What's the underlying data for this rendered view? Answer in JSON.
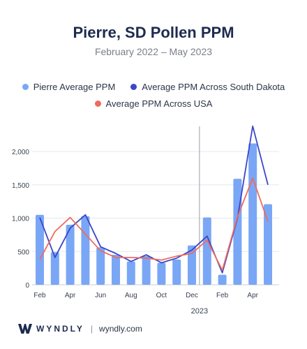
{
  "chart_data": {
    "type": "bar",
    "title": "Pierre, SD Pollen PPM",
    "subtitle": "February 2022 – May 2023",
    "categories": [
      "Feb",
      "Mar",
      "Apr",
      "May",
      "Jun",
      "Jul",
      "Aug",
      "Sep",
      "Oct",
      "Nov",
      "Dec",
      "Jan",
      "Feb",
      "Mar",
      "Apr",
      "May"
    ],
    "x_tick_labels": [
      "Feb",
      "Apr",
      "Jun",
      "Aug",
      "Oct",
      "Dec",
      "Feb",
      "Apr"
    ],
    "year_divider_label": "2023",
    "series": [
      {
        "name": "Pierre Average PPM",
        "kind": "bar",
        "color": "#7aa7f5",
        "values": [
          1050,
          490,
          900,
          1030,
          560,
          450,
          350,
          430,
          330,
          380,
          590,
          1010,
          150,
          1590,
          2120,
          1210
        ]
      },
      {
        "name": "Average PPM Across South Dakota",
        "kind": "line",
        "color": "#3b46c9",
        "values": [
          1010,
          410,
          850,
          1050,
          570,
          470,
          350,
          450,
          330,
          400,
          520,
          730,
          180,
          1000,
          2380,
          1500
        ]
      },
      {
        "name": "Average PPM Across USA",
        "kind": "line",
        "color": "#ee6a5f",
        "values": [
          380,
          800,
          1010,
          760,
          510,
          410,
          410,
          400,
          370,
          430,
          470,
          670,
          220,
          1020,
          1600,
          950
        ]
      }
    ],
    "ylim": [
      0,
      2400
    ],
    "y_ticks": [
      0,
      500,
      1000,
      1500,
      2000
    ],
    "y_tick_labels": [
      "0",
      "500",
      "1,000",
      "1,500",
      "2,000"
    ],
    "grid": true,
    "legend_position": "top"
  },
  "footer": {
    "brand": "WYNDLY",
    "separator": "|",
    "site": "wyndly.com"
  }
}
